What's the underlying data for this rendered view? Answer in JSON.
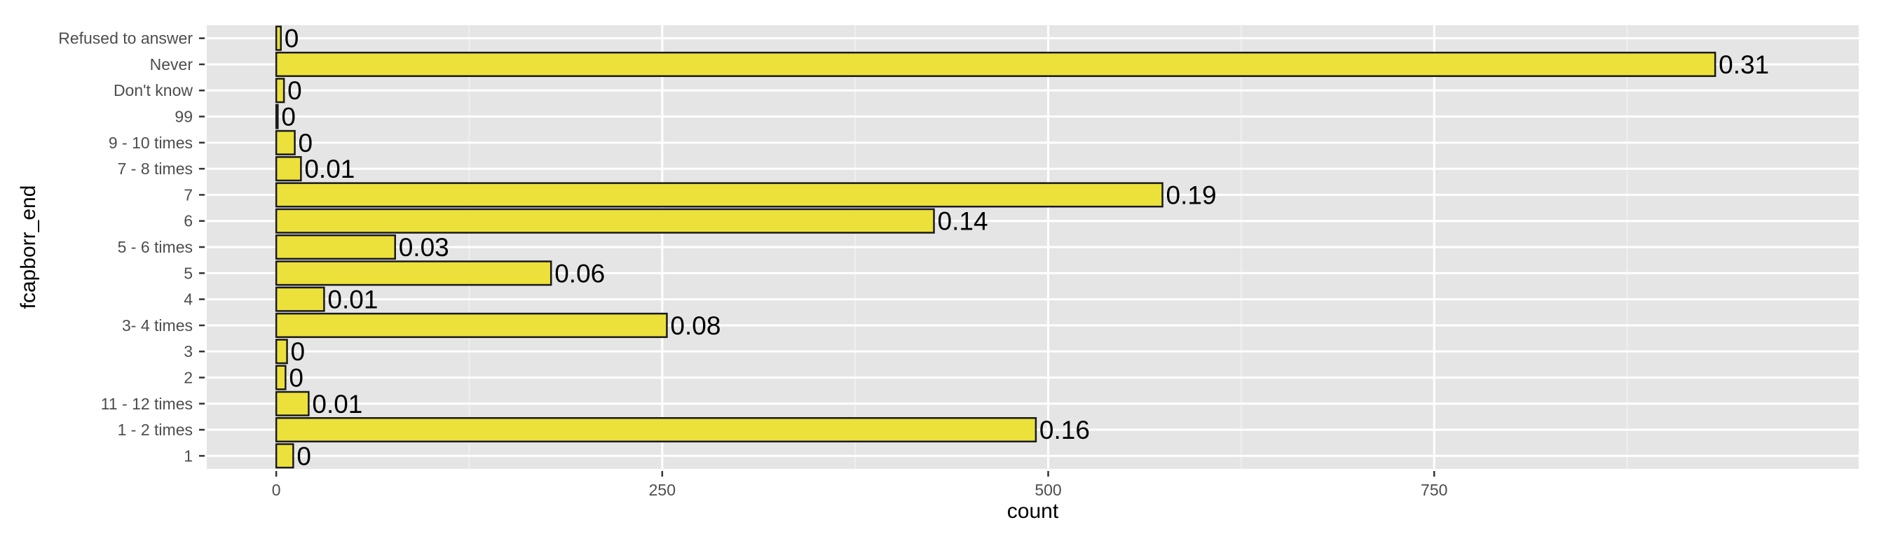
{
  "chart_data": {
    "type": "bar",
    "orientation": "horizontal",
    "xlabel": "count",
    "ylabel": "fcapborr_end",
    "xlim": [
      -45,
      1025
    ],
    "xticks": [
      0,
      250,
      500,
      750
    ],
    "xtick_labels": [
      "0",
      "250",
      "500",
      "750"
    ],
    "grid": true,
    "legend": "none",
    "colors": {
      "bar_fill": "#ECE13B",
      "bar_stroke": "#1a1a1a",
      "panel_bg": "#E5E5E5",
      "grid_major": "#FFFFFF",
      "grid_minor": "#F2F2F2"
    },
    "categories": [
      "Refused to answer",
      "Never",
      "Don't know",
      "99",
      "9 - 10 times",
      "7 - 8 times",
      "7",
      "6",
      "5 - 6 times",
      "5",
      "4",
      "3- 4 times",
      "3",
      "2",
      "11 - 12 times",
      "1 - 2 times",
      "1"
    ],
    "values": [
      3,
      932,
      5,
      1,
      12,
      16,
      574,
      426,
      77,
      178,
      31,
      253,
      7,
      6,
      21,
      492,
      11
    ],
    "labels": [
      "0",
      "0.31",
      "0",
      "0",
      "0",
      "0.01",
      "0.19",
      "0.14",
      "0.03",
      "0.06",
      "0.01",
      "0.08",
      "0",
      "0",
      "0.01",
      "0.16",
      "0"
    ]
  }
}
